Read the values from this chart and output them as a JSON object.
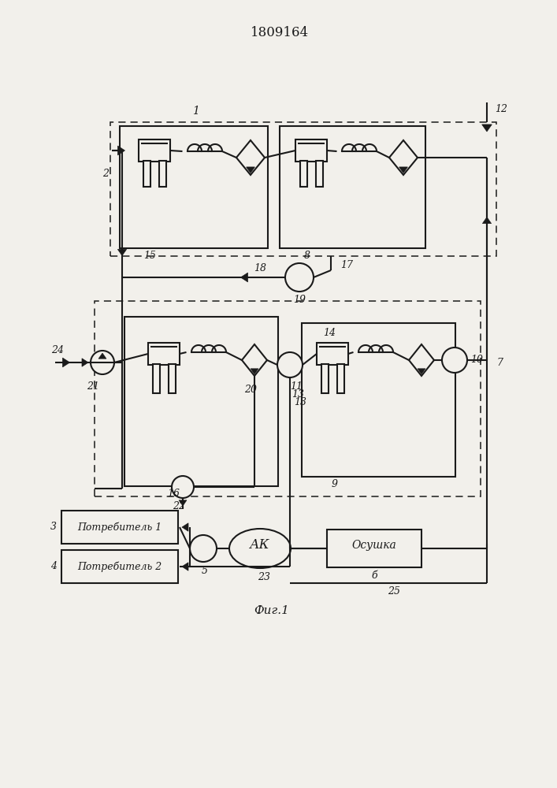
{
  "title": "1809164",
  "fig_label": "Фиг.1",
  "bg": "#f2f0eb",
  "lc": "#1a1a1a",
  "lw": 1.5,
  "lw_dash": 1.2,
  "consumer1": "Потребитель 1",
  "consumer2": "Потребитель 2",
  "ak_text": "АК",
  "dryer_text": "Осушка"
}
